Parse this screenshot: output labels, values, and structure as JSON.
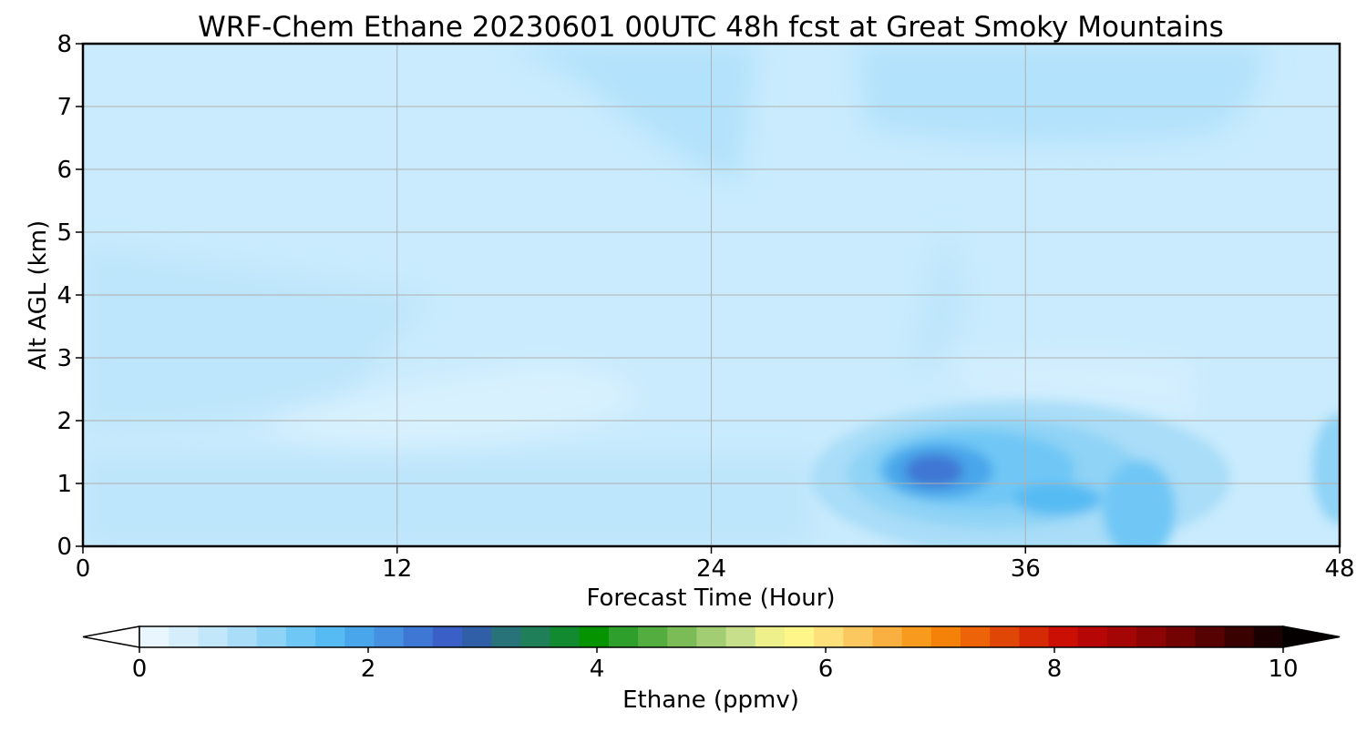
{
  "chart_data": {
    "type": "heatmap",
    "title": "WRF-Chem Ethane  20230601 00UTC 48h fcst at Great Smoky Mountains",
    "xlabel": "Forecast Time (Hour)",
    "ylabel": "Alt AGL (km)",
    "xlim": [
      0,
      48
    ],
    "ylim": [
      0,
      8
    ],
    "x_ticks": [
      "0",
      "12",
      "24",
      "36",
      "48"
    ],
    "x_tick_values": [
      0,
      12,
      24,
      36,
      48
    ],
    "y_ticks": [
      "0",
      "1",
      "2",
      "3",
      "4",
      "5",
      "6",
      "7",
      "8"
    ],
    "y_tick_values": [
      0,
      1,
      2,
      3,
      4,
      5,
      6,
      7,
      8
    ],
    "grid": true,
    "colorbar": {
      "label": "Ethane  (ppmv)",
      "range": [
        0,
        10
      ],
      "extend": "both",
      "ticks": [
        "0",
        "2",
        "4",
        "6",
        "8",
        "10"
      ],
      "tick_values": [
        0,
        2,
        4,
        6,
        8,
        10
      ],
      "colors": [
        "#ffffff",
        "#eaf6fd",
        "#d6eefb",
        "#c2e7fa",
        "#a9ddf8",
        "#8fd3f6",
        "#6fc7f5",
        "#56bbf3",
        "#4aa6ea",
        "#4590e0",
        "#3f77d4",
        "#3a5fc6",
        "#305fa8",
        "#28727a",
        "#1f7f58",
        "#128a30",
        "#059400",
        "#2d9f2a",
        "#53ad3f",
        "#7cbc57",
        "#a3cd72",
        "#c7de8a",
        "#eef08c",
        "#fff68a",
        "#fde07a",
        "#fbc860",
        "#f9b040",
        "#f89a1e",
        "#f48108",
        "#ec6308",
        "#e04606",
        "#d62a05",
        "#cc0f04",
        "#b70606",
        "#a40606",
        "#8c0404",
        "#730303",
        "#570202",
        "#3a0101",
        "#1a0000",
        "#050000"
      ]
    },
    "series": [
      {
        "description": "Ethane concentration field over forecast hour (x) and altitude km (y)",
        "background_value": 0.6,
        "features": [
          {
            "x": 6,
            "y": 3.5,
            "value": 0.72
          },
          {
            "x": 15,
            "y": 2.1,
            "value": 0.45
          },
          {
            "x": 27,
            "y": 7.5,
            "value": 0.85
          },
          {
            "x": 34,
            "y": 6.8,
            "value": 0.85
          },
          {
            "x": 32.5,
            "y": 1.15,
            "value": 2.1
          },
          {
            "x": 37,
            "y": 0.7,
            "value": 1.6
          },
          {
            "x": 39,
            "y": 0.3,
            "value": 1.2
          },
          {
            "x": 48,
            "y": 1.2,
            "value": 1.2
          }
        ]
      }
    ]
  }
}
